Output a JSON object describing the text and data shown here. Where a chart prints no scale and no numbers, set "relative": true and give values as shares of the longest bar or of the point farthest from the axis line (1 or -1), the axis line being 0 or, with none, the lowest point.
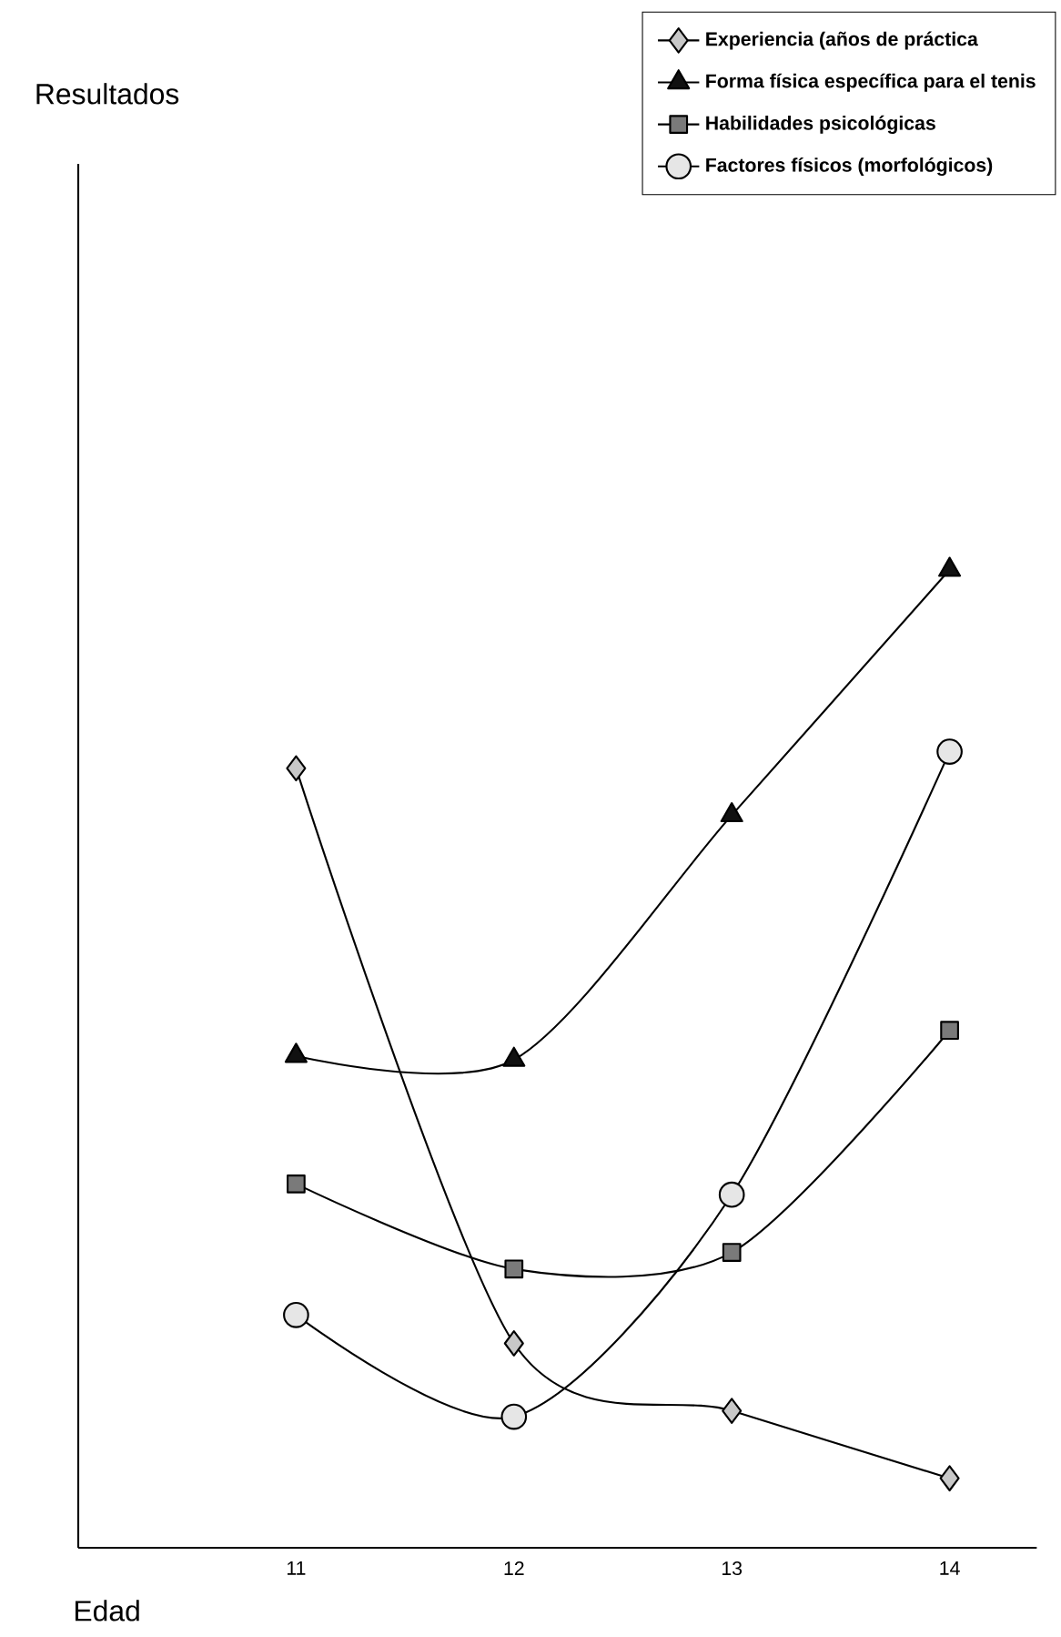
{
  "chart_data": {
    "type": "line",
    "relative": true,
    "xlabel": "Edad",
    "annotations": [
      "Resultados"
    ],
    "categories": [
      "11",
      "12",
      "13",
      "14"
    ],
    "legend": "top right",
    "grid": false,
    "series": [
      {
        "name": "Experiencia (años de práctica",
        "color": "#c8c8c8",
        "marker": "diamond",
        "values": [
          0.797,
          0.209,
          0.14,
          0.071
        ]
      },
      {
        "name": "Forma física específica para el tenis",
        "color": "#111111",
        "marker": "triangle",
        "values": [
          0.503,
          0.499,
          0.749,
          1
        ]
      },
      {
        "name": "Habilidades psicológicas",
        "color": "#7a7a7a",
        "marker": "square",
        "values": [
          0.372,
          0.285,
          0.302,
          0.529
        ]
      },
      {
        "name": "Factores físicos (morfológicos)",
        "color": "#e6e6e6",
        "marker": "circle",
        "values": [
          0.238,
          0.134,
          0.361,
          0.814
        ]
      }
    ]
  }
}
